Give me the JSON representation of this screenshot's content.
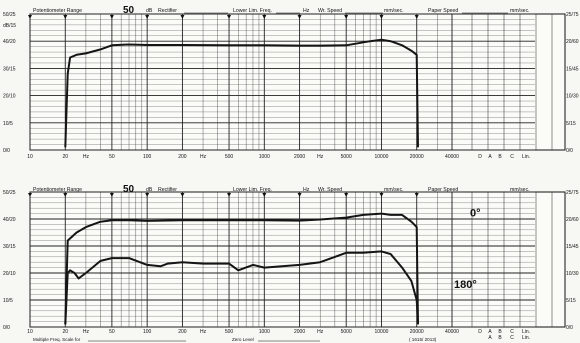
{
  "chart_data": [
    {
      "type": "line",
      "title": "",
      "header": {
        "pot_label": "Potentiometer Range",
        "pot_value": "50",
        "db_unit": "dB",
        "rectifier": "Rectifier",
        "lower_lim": "Lower Lim. Freq.",
        "hz": "Hz",
        "wr_speed": "Wr. Speed",
        "mm_sec_1": "mm/sec.",
        "paper_speed": "Paper Speed",
        "mm_sec_2": "mm/sec."
      },
      "x_scale": "log",
      "xlim": [
        10,
        40000
      ],
      "x_ticks": [
        "10",
        "20",
        "Hz",
        "50",
        "100",
        "200",
        "Hz",
        "500",
        "1000",
        "2000",
        "Hz",
        "5000",
        "10000",
        "20000",
        "40000",
        "D",
        "A",
        "B",
        "C",
        "Lin."
      ],
      "x_extra_ticks": [],
      "y_left_labels": [
        "50/25",
        "dB/15",
        "40/20",
        "30/15",
        "20/10",
        "10/5",
        "0/0"
      ],
      "y_right_labels": [
        "25/75",
        "20/60",
        "15/45",
        "10/30",
        "5/15",
        "0/0"
      ],
      "ylim": [
        0,
        50
      ],
      "series": [
        {
          "x": [
            20,
            21,
            22,
            25,
            30,
            40,
            50,
            70,
            100,
            200,
            500,
            1000,
            2000,
            3000,
            5000,
            8000,
            10000,
            12000,
            15000,
            18000,
            20000,
            20500
          ],
          "y": [
            1,
            28,
            34,
            35,
            35.5,
            37,
            38.5,
            38.8,
            38.6,
            38.6,
            38.5,
            38.5,
            38.4,
            38.4,
            38.5,
            40,
            40.5,
            40,
            38.5,
            36.5,
            35,
            1
          ]
        }
      ],
      "annotations": []
    },
    {
      "type": "line",
      "title": "",
      "header": {
        "pot_label": "Potentiometer Range",
        "pot_value": "50",
        "db_unit": "dB",
        "rectifier": "Rectifier",
        "lower_lim": "Lower Lim. Freq.",
        "hz": "Hz",
        "wr_speed": "Wr. Speed",
        "mm_sec_1": "mm/sec.",
        "paper_speed": "Paper Speed",
        "mm_sec_2": "mm/sec."
      },
      "x_scale": "log",
      "xlim": [
        10,
        40000
      ],
      "x_ticks": [
        "10",
        "20",
        "Hz",
        "50",
        "100",
        "200",
        "Hz",
        "500",
        "1000",
        "2000",
        "Hz",
        "5000",
        "10000",
        "20000",
        "40000",
        "D",
        "A",
        "B",
        "C",
        "Lin."
      ],
      "x_extra_ticks": [
        "A",
        "B",
        "C",
        "Lin."
      ],
      "y_left_labels": [
        "50/25",
        "40/20",
        "30/15",
        "20/10",
        "10/5",
        "0/0"
      ],
      "y_right_labels": [
        "25/75",
        "20/60",
        "15/45",
        "10/30",
        "5/15",
        "0/0"
      ],
      "ylim": [
        0,
        50
      ],
      "series": [
        {
          "name": "0°",
          "x": [
            20,
            21,
            25,
            30,
            40,
            50,
            70,
            100,
            200,
            500,
            1000,
            2000,
            3000,
            5000,
            7000,
            10000,
            12000,
            15000,
            18000,
            20000,
            20500
          ],
          "y": [
            1,
            32,
            35,
            37,
            39,
            39.5,
            39.5,
            39.3,
            39.5,
            39.5,
            39.5,
            39.4,
            39.8,
            40.5,
            41.5,
            42,
            41.5,
            41.5,
            39,
            37,
            1
          ]
        },
        {
          "name": "180°",
          "x": [
            20,
            21,
            22,
            24,
            26,
            30,
            40,
            50,
            70,
            100,
            130,
            150,
            200,
            300,
            500,
            600,
            800,
            1000,
            2000,
            3000,
            5000,
            7000,
            10000,
            12000,
            15000,
            18000,
            20000,
            20500
          ],
          "y": [
            1,
            20,
            21,
            20,
            18,
            20,
            24.5,
            25.5,
            25.5,
            23,
            22.5,
            23.5,
            24,
            23.5,
            23.5,
            21,
            23,
            22,
            23,
            24,
            27.5,
            27.5,
            28,
            27,
            22,
            17,
            10,
            1
          ]
        }
      ],
      "annotations": [
        "0°",
        "180°"
      ],
      "footer": {
        "multiple_freq": "Multiple Freq. Scale for",
        "zero_level": "Zero Level",
        "code": "( 1615/ 2013)"
      }
    }
  ]
}
